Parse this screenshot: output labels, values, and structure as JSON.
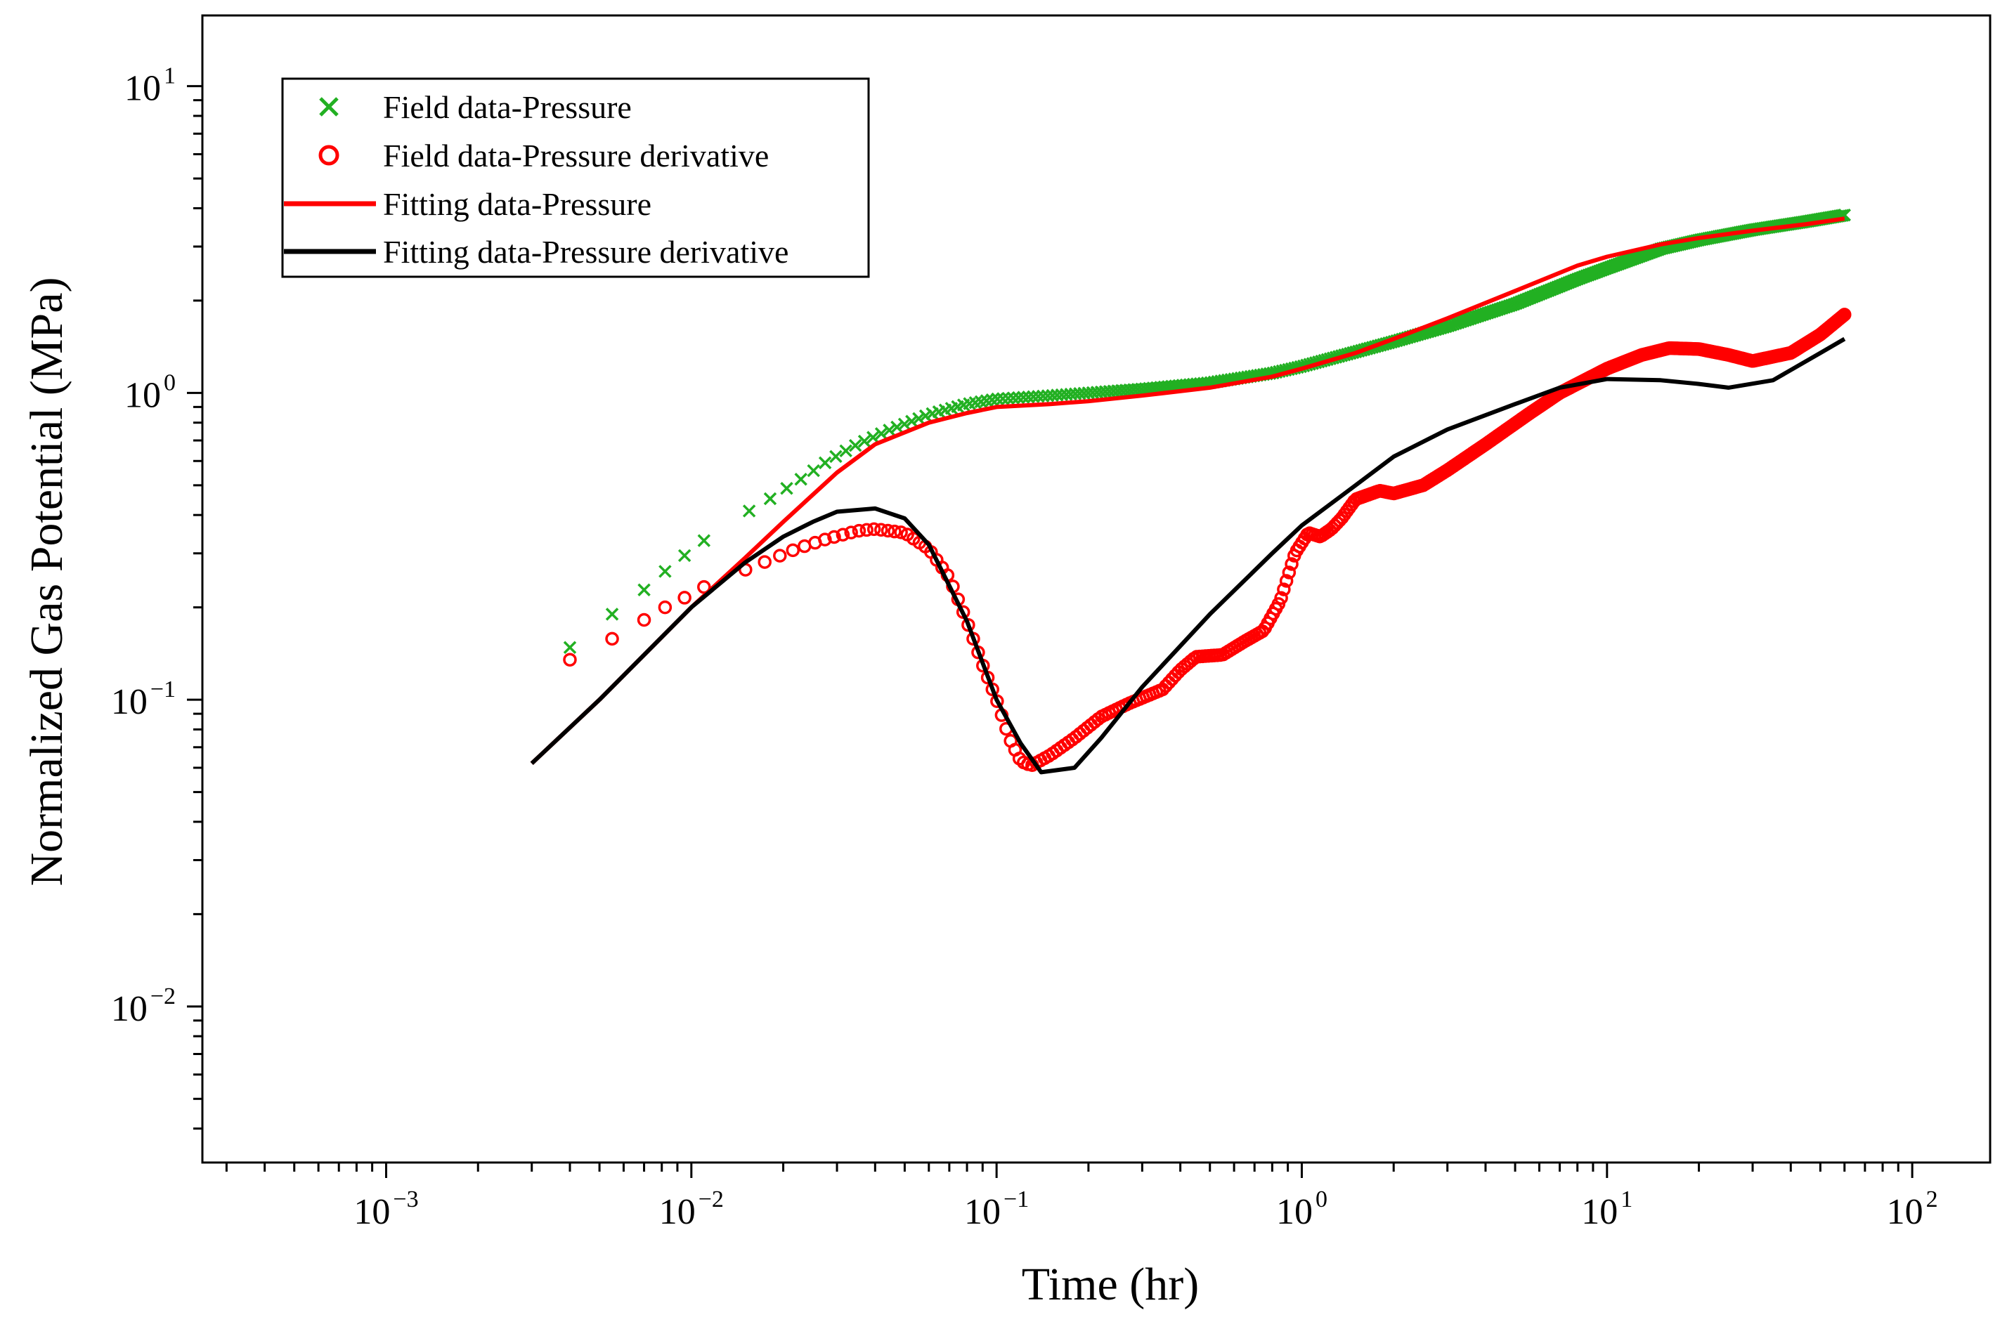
{
  "chart_data": {
    "type": "line",
    "title": "",
    "xlabel": "Time (hr)",
    "ylabel": "Normalized Gas Potential (MPa)",
    "xscale": "log",
    "yscale": "log",
    "xlim": [
      0.00025,
      180
    ],
    "ylim": [
      0.0031,
      17
    ],
    "grid": false,
    "legend_position": "top-left",
    "x_ticks": [
      {
        "value": 0.001,
        "base": "10",
        "exp": "−3"
      },
      {
        "value": 0.01,
        "base": "10",
        "exp": "−2"
      },
      {
        "value": 0.1,
        "base": "10",
        "exp": "−1"
      },
      {
        "value": 1,
        "base": "10",
        "exp": "0"
      },
      {
        "value": 10,
        "base": "10",
        "exp": "1"
      },
      {
        "value": 100,
        "base": "10",
        "exp": "2"
      }
    ],
    "y_ticks": [
      {
        "value": 0.01,
        "base": "10",
        "exp": "−2"
      },
      {
        "value": 0.1,
        "base": "10",
        "exp": "−1"
      },
      {
        "value": 1,
        "base": "10",
        "exp": "0"
      },
      {
        "value": 10,
        "base": "10",
        "exp": "1"
      }
    ],
    "series": [
      {
        "name": "Field data-Pressure",
        "style": "marker-x",
        "color": "#22b022",
        "anchors": [
          [
            0.004,
            0.148
          ],
          [
            0.0055,
            0.19
          ],
          [
            0.007,
            0.228
          ],
          [
            0.0082,
            0.262
          ],
          [
            0.0095,
            0.295
          ],
          [
            0.011,
            0.33
          ],
          [
            0.013,
            0.37
          ],
          [
            0.015,
            0.405
          ],
          [
            0.018,
            0.45
          ],
          [
            0.022,
            0.51
          ],
          [
            0.028,
            0.6
          ],
          [
            0.035,
            0.68
          ],
          [
            0.045,
            0.76
          ],
          [
            0.06,
            0.85
          ],
          [
            0.08,
            0.92
          ],
          [
            0.1,
            0.955
          ],
          [
            0.15,
            0.98
          ],
          [
            0.2,
            1.0
          ],
          [
            0.3,
            1.03
          ],
          [
            0.5,
            1.08
          ],
          [
            0.8,
            1.16
          ],
          [
            1.0,
            1.22
          ],
          [
            1.5,
            1.36
          ],
          [
            2.0,
            1.47
          ],
          [
            3.0,
            1.65
          ],
          [
            5.0,
            1.95
          ],
          [
            8.0,
            2.35
          ],
          [
            10.0,
            2.55
          ],
          [
            15.0,
            2.95
          ],
          [
            20.0,
            3.15
          ],
          [
            30.0,
            3.4
          ],
          [
            45.0,
            3.62
          ],
          [
            60.0,
            3.8
          ]
        ],
        "count": 360
      },
      {
        "name": "Field data-Pressure derivative",
        "style": "marker-circle",
        "color": "#ff0000",
        "anchors": [
          [
            0.004,
            0.135
          ],
          [
            0.0055,
            0.158
          ],
          [
            0.007,
            0.182
          ],
          [
            0.0082,
            0.2
          ],
          [
            0.0095,
            0.215
          ],
          [
            0.011,
            0.233
          ],
          [
            0.013,
            0.252
          ],
          [
            0.015,
            0.265
          ],
          [
            0.018,
            0.285
          ],
          [
            0.022,
            0.31
          ],
          [
            0.028,
            0.335
          ],
          [
            0.035,
            0.355
          ],
          [
            0.04,
            0.36
          ],
          [
            0.05,
            0.35
          ],
          [
            0.06,
            0.31
          ],
          [
            0.07,
            0.25
          ],
          [
            0.08,
            0.18
          ],
          [
            0.09,
            0.13
          ],
          [
            0.1,
            0.1
          ],
          [
            0.11,
            0.075
          ],
          [
            0.12,
            0.063
          ],
          [
            0.13,
            0.061
          ],
          [
            0.15,
            0.066
          ],
          [
            0.18,
            0.075
          ],
          [
            0.22,
            0.088
          ],
          [
            0.27,
            0.097
          ],
          [
            0.35,
            0.108
          ],
          [
            0.4,
            0.125
          ],
          [
            0.45,
            0.138
          ],
          [
            0.55,
            0.14
          ],
          [
            0.65,
            0.155
          ],
          [
            0.75,
            0.168
          ],
          [
            0.85,
            0.21
          ],
          [
            0.95,
            0.3
          ],
          [
            1.05,
            0.35
          ],
          [
            1.15,
            0.34
          ],
          [
            1.25,
            0.36
          ],
          [
            1.35,
            0.39
          ],
          [
            1.5,
            0.45
          ],
          [
            1.8,
            0.48
          ],
          [
            2.0,
            0.47
          ],
          [
            2.5,
            0.5
          ],
          [
            3.0,
            0.56
          ],
          [
            4.0,
            0.68
          ],
          [
            5.5,
            0.85
          ],
          [
            7.0,
            1.0
          ],
          [
            10.0,
            1.2
          ],
          [
            13.0,
            1.33
          ],
          [
            16.0,
            1.4
          ],
          [
            20.0,
            1.39
          ],
          [
            25.0,
            1.33
          ],
          [
            30.0,
            1.27
          ],
          [
            40.0,
            1.35
          ],
          [
            50.0,
            1.55
          ],
          [
            60.0,
            1.8
          ]
        ],
        "count": 420
      },
      {
        "name": "Fitting data-Pressure",
        "style": "line",
        "color": "#ff0000",
        "points": [
          [
            0.003,
            0.062
          ],
          [
            0.005,
            0.1
          ],
          [
            0.008,
            0.16
          ],
          [
            0.01,
            0.2
          ],
          [
            0.015,
            0.29
          ],
          [
            0.02,
            0.38
          ],
          [
            0.03,
            0.55
          ],
          [
            0.04,
            0.68
          ],
          [
            0.06,
            0.8
          ],
          [
            0.08,
            0.86
          ],
          [
            0.1,
            0.9
          ],
          [
            0.15,
            0.92
          ],
          [
            0.2,
            0.94
          ],
          [
            0.3,
            0.98
          ],
          [
            0.5,
            1.04
          ],
          [
            0.8,
            1.13
          ],
          [
            1.0,
            1.2
          ],
          [
            1.5,
            1.35
          ],
          [
            2.0,
            1.5
          ],
          [
            3.0,
            1.75
          ],
          [
            5.0,
            2.15
          ],
          [
            8.0,
            2.6
          ],
          [
            10.0,
            2.78
          ],
          [
            15.0,
            3.05
          ],
          [
            20.0,
            3.2
          ],
          [
            30.0,
            3.38
          ],
          [
            45.0,
            3.55
          ],
          [
            60.0,
            3.7
          ]
        ]
      },
      {
        "name": "Fitting data-Pressure derivative",
        "style": "line",
        "color": "#000000",
        "points": [
          [
            0.003,
            0.062
          ],
          [
            0.005,
            0.1
          ],
          [
            0.008,
            0.16
          ],
          [
            0.01,
            0.2
          ],
          [
            0.015,
            0.28
          ],
          [
            0.02,
            0.34
          ],
          [
            0.025,
            0.38
          ],
          [
            0.03,
            0.41
          ],
          [
            0.04,
            0.42
          ],
          [
            0.05,
            0.39
          ],
          [
            0.06,
            0.32
          ],
          [
            0.08,
            0.18
          ],
          [
            0.1,
            0.1
          ],
          [
            0.12,
            0.072
          ],
          [
            0.14,
            0.058
          ],
          [
            0.18,
            0.06
          ],
          [
            0.22,
            0.075
          ],
          [
            0.3,
            0.11
          ],
          [
            0.5,
            0.19
          ],
          [
            0.8,
            0.3
          ],
          [
            1.0,
            0.37
          ],
          [
            1.5,
            0.5
          ],
          [
            2.0,
            0.62
          ],
          [
            3.0,
            0.76
          ],
          [
            5.0,
            0.92
          ],
          [
            7.0,
            1.04
          ],
          [
            10.0,
            1.11
          ],
          [
            15.0,
            1.1
          ],
          [
            20.0,
            1.07
          ],
          [
            25.0,
            1.04
          ],
          [
            35.0,
            1.1
          ],
          [
            50.0,
            1.35
          ],
          [
            60.0,
            1.5
          ]
        ]
      }
    ]
  }
}
